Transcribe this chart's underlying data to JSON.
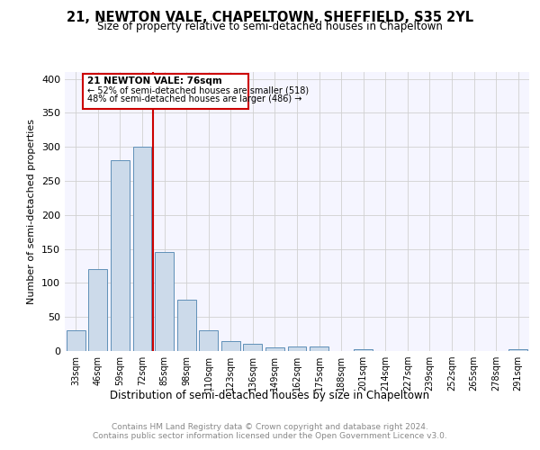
{
  "title": "21, NEWTON VALE, CHAPELTOWN, SHEFFIELD, S35 2YL",
  "subtitle": "Size of property relative to semi-detached houses in Chapeltown",
  "xlabel": "Distribution of semi-detached houses by size in Chapeltown",
  "ylabel": "Number of semi-detached properties",
  "categories": [
    "33sqm",
    "46sqm",
    "59sqm",
    "72sqm",
    "85sqm",
    "98sqm",
    "110sqm",
    "123sqm",
    "136sqm",
    "149sqm",
    "162sqm",
    "175sqm",
    "188sqm",
    "201sqm",
    "214sqm",
    "227sqm",
    "239sqm",
    "252sqm",
    "265sqm",
    "278sqm",
    "291sqm"
  ],
  "values": [
    30,
    120,
    281,
    300,
    145,
    75,
    30,
    15,
    11,
    5,
    7,
    6,
    0,
    3,
    0,
    0,
    0,
    0,
    0,
    0,
    3
  ],
  "bar_color": "#ccdaea",
  "bar_edge_color": "#6090b8",
  "property_label": "21 NEWTON VALE: 76sqm",
  "annotation_line1": "← 52% of semi-detached houses are smaller (518)",
  "annotation_line2": "48% of semi-detached houses are larger (486) →",
  "vline_x_index": 3.5,
  "vline_color": "#cc0000",
  "box_color": "#cc0000",
  "ylim": [
    0,
    410
  ],
  "yticks": [
    0,
    50,
    100,
    150,
    200,
    250,
    300,
    350,
    400
  ],
  "footer_line1": "Contains HM Land Registry data © Crown copyright and database right 2024.",
  "footer_line2": "Contains public sector information licensed under the Open Government Licence v3.0.",
  "background_color": "#f5f5ff",
  "grid_color": "#d0d0d0"
}
